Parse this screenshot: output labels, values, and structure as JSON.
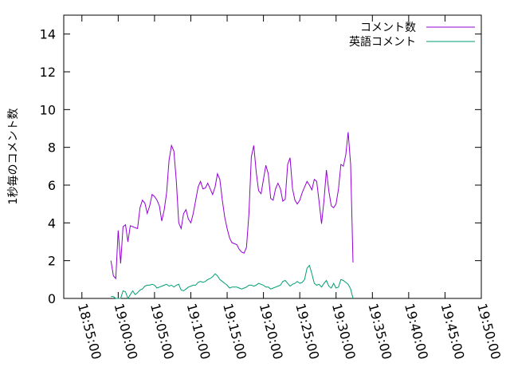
{
  "chart_data": {
    "type": "line",
    "ylabel": "1秒毎のコメント数",
    "xlabel": "",
    "ylim": [
      0,
      15
    ],
    "yticks": [
      0,
      2,
      4,
      6,
      8,
      10,
      12,
      14
    ],
    "xlim": [
      "18:52:30",
      "19:50:00"
    ],
    "xticks": [
      "18:55:00",
      "19:00:00",
      "19:05:00",
      "19:10:00",
      "19:15:00",
      "19:20:00",
      "19:25:00",
      "19:30:00",
      "19:35:00",
      "19:40:00",
      "19:45:00",
      "19:50:00"
    ],
    "grid": false,
    "legend_position": "top-right",
    "series": [
      {
        "name": "コメント数",
        "color": "#9400d3",
        "points": [
          [
            "18:59:00",
            2.0
          ],
          [
            "18:59:20",
            1.2
          ],
          [
            "18:59:40",
            1.05
          ],
          [
            "19:00:00",
            3.6
          ],
          [
            "19:00:20",
            1.85
          ],
          [
            "19:00:40",
            3.8
          ],
          [
            "19:01:00",
            3.9
          ],
          [
            "19:01:20",
            3.0
          ],
          [
            "19:01:40",
            3.85
          ],
          [
            "19:02:00",
            3.8
          ],
          [
            "19:02:20",
            3.75
          ],
          [
            "19:02:40",
            3.7
          ],
          [
            "19:03:00",
            4.8
          ],
          [
            "19:03:20",
            5.2
          ],
          [
            "19:03:40",
            5.05
          ],
          [
            "19:04:00",
            4.5
          ],
          [
            "19:04:20",
            4.9
          ],
          [
            "19:04:40",
            5.5
          ],
          [
            "19:05:00",
            5.4
          ],
          [
            "19:05:20",
            5.2
          ],
          [
            "19:05:40",
            4.9
          ],
          [
            "19:06:00",
            4.1
          ],
          [
            "19:06:20",
            4.7
          ],
          [
            "19:06:40",
            5.6
          ],
          [
            "19:07:00",
            7.3
          ],
          [
            "19:07:20",
            8.1
          ],
          [
            "19:07:40",
            7.8
          ],
          [
            "19:08:00",
            6.2
          ],
          [
            "19:08:20",
            4.0
          ],
          [
            "19:08:40",
            3.7
          ],
          [
            "19:09:00",
            4.5
          ],
          [
            "19:09:20",
            4.7
          ],
          [
            "19:09:40",
            4.2
          ],
          [
            "19:10:00",
            4.0
          ],
          [
            "19:10:20",
            4.5
          ],
          [
            "19:10:40",
            5.2
          ],
          [
            "19:11:00",
            5.9
          ],
          [
            "19:11:20",
            6.2
          ],
          [
            "19:11:40",
            5.8
          ],
          [
            "19:12:00",
            5.85
          ],
          [
            "19:12:20",
            6.1
          ],
          [
            "19:12:40",
            5.8
          ],
          [
            "19:13:00",
            5.5
          ],
          [
            "19:13:20",
            5.9
          ],
          [
            "19:13:40",
            6.6
          ],
          [
            "19:14:00",
            6.3
          ],
          [
            "19:14:20",
            5.2
          ],
          [
            "19:14:40",
            4.3
          ],
          [
            "19:15:00",
            3.7
          ],
          [
            "19:15:20",
            3.2
          ],
          [
            "19:15:40",
            2.95
          ],
          [
            "19:16:00",
            2.9
          ],
          [
            "19:16:20",
            2.85
          ],
          [
            "19:16:40",
            2.6
          ],
          [
            "19:17:00",
            2.45
          ],
          [
            "19:17:20",
            2.4
          ],
          [
            "19:17:40",
            2.7
          ],
          [
            "19:18:00",
            4.5
          ],
          [
            "19:18:20",
            7.5
          ],
          [
            "19:18:40",
            8.1
          ],
          [
            "19:19:00",
            6.7
          ],
          [
            "19:19:20",
            5.7
          ],
          [
            "19:19:40",
            5.55
          ],
          [
            "19:20:00",
            6.3
          ],
          [
            "19:20:20",
            7.05
          ],
          [
            "19:20:40",
            6.6
          ],
          [
            "19:21:00",
            5.3
          ],
          [
            "19:21:20",
            5.2
          ],
          [
            "19:21:40",
            5.8
          ],
          [
            "19:22:00",
            6.1
          ],
          [
            "19:22:20",
            5.8
          ],
          [
            "19:22:40",
            5.15
          ],
          [
            "19:23:00",
            5.25
          ],
          [
            "19:23:20",
            7.1
          ],
          [
            "19:23:40",
            7.45
          ],
          [
            "19:24:00",
            5.8
          ],
          [
            "19:24:20",
            5.2
          ],
          [
            "19:24:40",
            5.0
          ],
          [
            "19:25:00",
            5.2
          ],
          [
            "19:25:20",
            5.6
          ],
          [
            "19:25:40",
            5.9
          ],
          [
            "19:26:00",
            6.2
          ],
          [
            "19:26:20",
            6.0
          ],
          [
            "19:26:40",
            5.75
          ],
          [
            "19:27:00",
            6.3
          ],
          [
            "19:27:20",
            6.2
          ],
          [
            "19:27:40",
            5.1
          ],
          [
            "19:28:00",
            3.95
          ],
          [
            "19:28:20",
            5.2
          ],
          [
            "19:28:40",
            6.8
          ],
          [
            "19:29:00",
            5.7
          ],
          [
            "19:29:20",
            4.9
          ],
          [
            "19:29:40",
            4.8
          ],
          [
            "19:30:00",
            5.0
          ],
          [
            "19:30:20",
            5.8
          ],
          [
            "19:30:40",
            7.1
          ],
          [
            "19:31:00",
            7.0
          ],
          [
            "19:31:20",
            7.6
          ],
          [
            "19:31:40",
            8.8
          ],
          [
            "19:32:00",
            7.1
          ],
          [
            "19:32:20",
            1.9
          ]
        ]
      },
      {
        "name": "英語コメント",
        "color": "#009e73",
        "points": [
          [
            "18:59:00",
            0.1
          ],
          [
            "18:59:20",
            0.1
          ],
          [
            "18:59:40",
            0.0
          ],
          [
            "19:00:00",
            0.0
          ],
          [
            "19:00:20",
            0.0
          ],
          [
            "19:00:40",
            0.4
          ],
          [
            "19:01:00",
            0.35
          ],
          [
            "19:01:20",
            0.0
          ],
          [
            "19:01:40",
            0.2
          ],
          [
            "19:02:00",
            0.4
          ],
          [
            "19:02:20",
            0.2
          ],
          [
            "19:02:40",
            0.3
          ],
          [
            "19:03:00",
            0.45
          ],
          [
            "19:03:20",
            0.5
          ],
          [
            "19:03:40",
            0.65
          ],
          [
            "19:04:00",
            0.7
          ],
          [
            "19:04:20",
            0.7
          ],
          [
            "19:04:40",
            0.75
          ],
          [
            "19:05:00",
            0.7
          ],
          [
            "19:05:20",
            0.55
          ],
          [
            "19:05:40",
            0.6
          ],
          [
            "19:06:00",
            0.65
          ],
          [
            "19:06:20",
            0.7
          ],
          [
            "19:06:40",
            0.75
          ],
          [
            "19:07:00",
            0.65
          ],
          [
            "19:07:20",
            0.7
          ],
          [
            "19:07:40",
            0.6
          ],
          [
            "19:08:00",
            0.7
          ],
          [
            "19:08:20",
            0.75
          ],
          [
            "19:08:40",
            0.45
          ],
          [
            "19:09:00",
            0.4
          ],
          [
            "19:09:20",
            0.5
          ],
          [
            "19:09:40",
            0.6
          ],
          [
            "19:10:00",
            0.65
          ],
          [
            "19:10:20",
            0.7
          ],
          [
            "19:10:40",
            0.7
          ],
          [
            "19:11:00",
            0.85
          ],
          [
            "19:11:20",
            0.9
          ],
          [
            "19:11:40",
            0.85
          ],
          [
            "19:12:00",
            0.9
          ],
          [
            "19:12:20",
            1.0
          ],
          [
            "19:12:40",
            1.05
          ],
          [
            "19:13:00",
            1.15
          ],
          [
            "19:13:20",
            1.3
          ],
          [
            "19:13:40",
            1.2
          ],
          [
            "19:14:00",
            1.0
          ],
          [
            "19:14:20",
            0.9
          ],
          [
            "19:14:40",
            0.8
          ],
          [
            "19:15:00",
            0.7
          ],
          [
            "19:15:20",
            0.55
          ],
          [
            "19:15:40",
            0.6
          ],
          [
            "19:16:00",
            0.6
          ],
          [
            "19:16:20",
            0.6
          ],
          [
            "19:16:40",
            0.55
          ],
          [
            "19:17:00",
            0.5
          ],
          [
            "19:17:20",
            0.55
          ],
          [
            "19:17:40",
            0.6
          ],
          [
            "19:18:00",
            0.7
          ],
          [
            "19:18:20",
            0.7
          ],
          [
            "19:18:40",
            0.65
          ],
          [
            "19:19:00",
            0.7
          ],
          [
            "19:19:20",
            0.8
          ],
          [
            "19:19:40",
            0.75
          ],
          [
            "19:20:00",
            0.7
          ],
          [
            "19:20:20",
            0.6
          ],
          [
            "19:20:40",
            0.6
          ],
          [
            "19:21:00",
            0.5
          ],
          [
            "19:21:20",
            0.55
          ],
          [
            "19:21:40",
            0.6
          ],
          [
            "19:22:00",
            0.65
          ],
          [
            "19:22:20",
            0.7
          ],
          [
            "19:22:40",
            0.9
          ],
          [
            "19:23:00",
            0.95
          ],
          [
            "19:23:20",
            0.8
          ],
          [
            "19:23:40",
            0.65
          ],
          [
            "19:24:00",
            0.75
          ],
          [
            "19:24:20",
            0.8
          ],
          [
            "19:24:40",
            0.9
          ],
          [
            "19:25:00",
            0.8
          ],
          [
            "19:25:20",
            0.85
          ],
          [
            "19:25:40",
            1.0
          ],
          [
            "19:26:00",
            1.6
          ],
          [
            "19:26:20",
            1.75
          ],
          [
            "19:26:40",
            1.3
          ],
          [
            "19:27:00",
            0.8
          ],
          [
            "19:27:20",
            0.7
          ],
          [
            "19:27:40",
            0.75
          ],
          [
            "19:28:00",
            0.6
          ],
          [
            "19:28:20",
            0.8
          ],
          [
            "19:28:40",
            0.95
          ],
          [
            "19:29:00",
            0.65
          ],
          [
            "19:29:20",
            0.55
          ],
          [
            "19:29:40",
            0.8
          ],
          [
            "19:30:00",
            0.55
          ],
          [
            "19:30:20",
            0.6
          ],
          [
            "19:30:40",
            1.0
          ],
          [
            "19:31:00",
            0.95
          ],
          [
            "19:31:20",
            0.85
          ],
          [
            "19:31:40",
            0.75
          ],
          [
            "19:32:00",
            0.5
          ],
          [
            "19:32:20",
            0.0
          ]
        ]
      }
    ]
  }
}
